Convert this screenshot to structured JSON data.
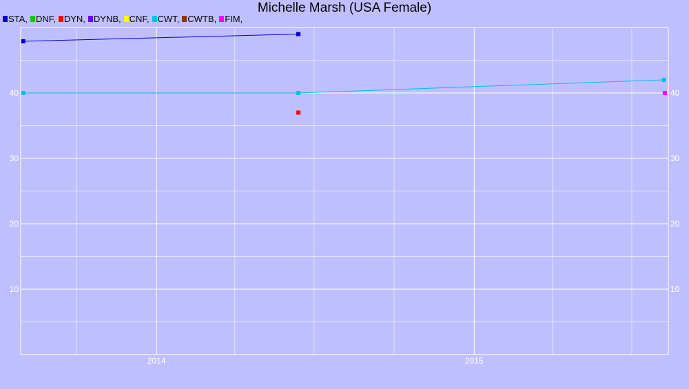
{
  "chart_data": {
    "type": "line",
    "title": "Michelle Marsh (USA Female)",
    "xlabel": "",
    "ylabel": "",
    "xlim": [
      "2013-07-29",
      "2015-08-12"
    ],
    "ylim": [
      0,
      50
    ],
    "x_ticks": [
      "2014",
      "2015"
    ],
    "y_ticks": [
      10,
      20,
      30,
      40
    ],
    "grid": true,
    "legend_position": "top-left",
    "legend": [
      {
        "name": "STA,",
        "color": "#0000cc"
      },
      {
        "name": "DNF,",
        "color": "#00cc00"
      },
      {
        "name": "DYN,",
        "color": "#ff0000"
      },
      {
        "name": "DYNB,",
        "color": "#6600ff"
      },
      {
        "name": "CNF,",
        "color": "#ffff00"
      },
      {
        "name": "CWT,",
        "color": "#00c0e0"
      },
      {
        "name": "CWTB,",
        "color": "#993300"
      },
      {
        "name": "FIM,",
        "color": "#ff00ff"
      }
    ],
    "series": [
      {
        "name": "STA",
        "color": "#0000cc",
        "points": [
          [
            "2013-08-01",
            47.9
          ],
          [
            "2014-06-13",
            49.0
          ]
        ]
      },
      {
        "name": "DYN",
        "color": "#ff0000",
        "points": [
          [
            "2014-06-13",
            37.0
          ]
        ]
      },
      {
        "name": "CWT",
        "color": "#00c0e0",
        "points": [
          [
            "2013-08-01",
            40.0
          ],
          [
            "2014-06-13",
            40.0
          ],
          [
            "2015-08-07",
            42.0
          ]
        ]
      },
      {
        "name": "FIM",
        "color": "#ff00ff",
        "points": [
          [
            "2015-08-08",
            40.0
          ]
        ]
      }
    ]
  }
}
